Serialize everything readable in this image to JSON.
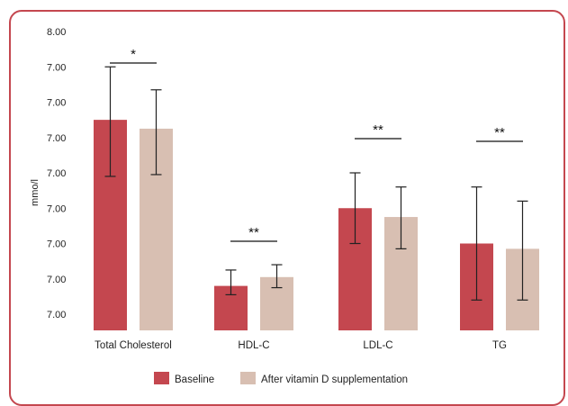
{
  "chart_data": {
    "type": "bar",
    "ylabel": "mmo/l",
    "y_tick_labels": [
      "8.00",
      "7.00",
      "7.00",
      "7.00",
      "7.00",
      "7.00",
      "7.00",
      "7.00",
      "7.00"
    ],
    "ylim": [
      0,
      8
    ],
    "categories": [
      "Total Cholesterol",
      "HDL-C",
      "LDL-C",
      "TG"
    ],
    "series": [
      {
        "name": "Baseline",
        "color": "#c4474f",
        "values": [
          5.5,
          0.8,
          3.0,
          2.0
        ],
        "error_low": [
          3.9,
          0.55,
          2.0,
          0.4
        ],
        "error_high": [
          7.0,
          1.25,
          4.0,
          3.6
        ]
      },
      {
        "name": "After vitamin D supplementation",
        "color": "#d8bfb2",
        "values": [
          5.25,
          1.05,
          2.75,
          1.85
        ],
        "error_low": [
          3.95,
          0.75,
          1.85,
          0.4
        ],
        "error_high": [
          6.35,
          1.4,
          3.6,
          3.2
        ]
      }
    ],
    "significance": [
      "*",
      "**",
      "**",
      "**"
    ],
    "legend": [
      "Baseline",
      "After vitamin D supplementation"
    ],
    "legend_position": "bottom-center",
    "grid": false
  }
}
